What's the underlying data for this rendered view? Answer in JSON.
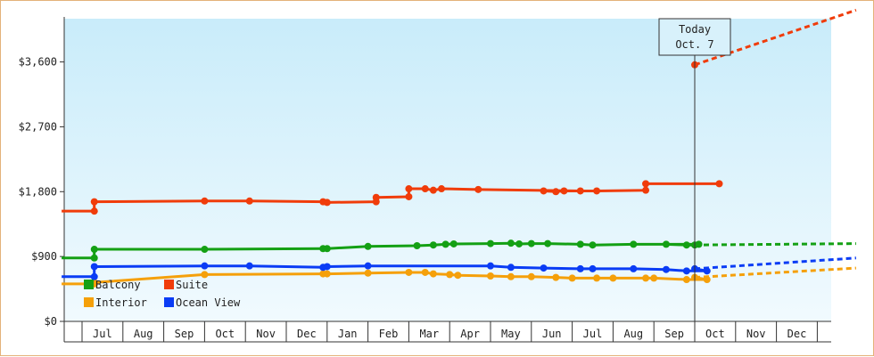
{
  "chart_data": {
    "type": "line",
    "title": "",
    "xlabel": "",
    "ylabel": "",
    "ylim": [
      0,
      4200
    ],
    "yticks": [
      0,
      900,
      1800,
      2700,
      3600
    ],
    "ytick_labels": [
      "$0",
      "$900",
      "$1,800",
      "$2,700",
      "$3,600"
    ],
    "x_months": [
      "Jul",
      "Aug",
      "Sep",
      "Oct",
      "Nov",
      "Dec",
      "Jan",
      "Feb",
      "Mar",
      "Apr",
      "May",
      "Jun",
      "Jul",
      "Aug",
      "Sep",
      "Oct",
      "Nov",
      "Dec"
    ],
    "xlim": [
      0,
      18.95
    ],
    "today": {
      "x": 15.0,
      "line1": "Today",
      "line2": "Oct. 7"
    },
    "legend": {
      "placement": "lower-left"
    },
    "series": [
      {
        "name": "Balcony",
        "color": "#14a014",
        "points": [
          [
            -0.5,
            880
          ],
          [
            0.3,
            880
          ],
          [
            0.3,
            1000
          ],
          [
            3.0,
            1000
          ],
          [
            5.9,
            1010
          ],
          [
            6.0,
            1010
          ],
          [
            7.0,
            1040
          ],
          [
            8.2,
            1050
          ],
          [
            8.6,
            1060
          ],
          [
            8.9,
            1070
          ],
          [
            9.1,
            1075
          ],
          [
            10.0,
            1080
          ],
          [
            10.5,
            1085
          ],
          [
            10.7,
            1075
          ],
          [
            11.0,
            1080
          ],
          [
            11.4,
            1080
          ],
          [
            12.2,
            1070
          ],
          [
            12.5,
            1060
          ],
          [
            13.5,
            1070
          ],
          [
            15.1,
            1070
          ],
          [
            14.3,
            1070
          ],
          [
            14.8,
            1060
          ],
          [
            15.0,
            1060
          ]
        ],
        "projection": [
          [
            15.0,
            1060
          ],
          [
            18.95,
            1080
          ]
        ]
      },
      {
        "name": "Suite",
        "color": "#f03c0a",
        "points": [
          [
            -0.5,
            1530
          ],
          [
            0.3,
            1530
          ],
          [
            0.3,
            1660
          ],
          [
            3.0,
            1670
          ],
          [
            4.1,
            1670
          ],
          [
            5.9,
            1660
          ],
          [
            6.0,
            1650
          ],
          [
            7.2,
            1660
          ],
          [
            7.2,
            1720
          ],
          [
            8.0,
            1730
          ],
          [
            8.0,
            1840
          ],
          [
            8.4,
            1840
          ],
          [
            8.6,
            1820
          ],
          [
            8.8,
            1840
          ],
          [
            9.7,
            1830
          ],
          [
            12.2,
            1810
          ],
          [
            11.3,
            1810
          ],
          [
            11.6,
            1800
          ],
          [
            11.8,
            1810
          ],
          [
            12.6,
            1810
          ],
          [
            13.8,
            1820
          ],
          [
            13.8,
            1910
          ],
          [
            15.6,
            1910
          ]
        ],
        "today_point": [
          15.0,
          3560
        ],
        "projection": [
          [
            15.0,
            3560
          ],
          [
            18.95,
            4320
          ]
        ]
      },
      {
        "name": "Interior",
        "color": "#f5a00a",
        "points": [
          [
            -0.5,
            520
          ],
          [
            0.3,
            520
          ],
          [
            0.3,
            540
          ],
          [
            3.0,
            650
          ],
          [
            5.9,
            660
          ],
          [
            6.0,
            660
          ],
          [
            7.0,
            670
          ],
          [
            8.0,
            680
          ],
          [
            8.4,
            680
          ],
          [
            8.6,
            660
          ],
          [
            9.0,
            650
          ],
          [
            9.2,
            640
          ],
          [
            10.0,
            630
          ],
          [
            10.5,
            620
          ],
          [
            11.0,
            620
          ],
          [
            11.6,
            610
          ],
          [
            12.0,
            600
          ],
          [
            12.6,
            600
          ],
          [
            13.0,
            600
          ],
          [
            13.8,
            600
          ],
          [
            14.0,
            600
          ],
          [
            14.8,
            580
          ],
          [
            15.3,
            580
          ],
          [
            15.0,
            610
          ]
        ],
        "projection": [
          [
            15.0,
            610
          ],
          [
            18.95,
            740
          ]
        ]
      },
      {
        "name": "Ocean View",
        "color": "#0a3cf5",
        "points": [
          [
            -0.5,
            620
          ],
          [
            0.3,
            620
          ],
          [
            0.3,
            760
          ],
          [
            3.0,
            770
          ],
          [
            4.1,
            770
          ],
          [
            5.9,
            750
          ],
          [
            6.0,
            760
          ],
          [
            7.0,
            770
          ],
          [
            10.0,
            770
          ],
          [
            10.5,
            750
          ],
          [
            11.3,
            740
          ],
          [
            12.2,
            730
          ],
          [
            12.5,
            730
          ],
          [
            13.5,
            730
          ],
          [
            14.3,
            720
          ],
          [
            14.8,
            700
          ],
          [
            15.3,
            700
          ],
          [
            15.0,
            730
          ]
        ],
        "projection": [
          [
            15.0,
            730
          ],
          [
            18.95,
            880
          ]
        ]
      }
    ]
  }
}
